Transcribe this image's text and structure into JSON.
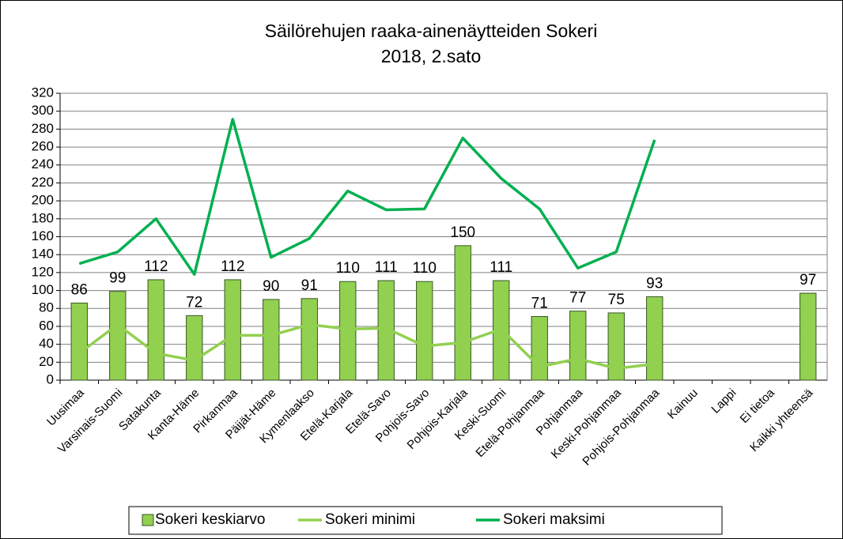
{
  "chart_data": {
    "type": "bar",
    "title": "Säilörehujen raaka-ainenäytteiden Sokeri",
    "subtitle": "2018, 2.sato",
    "categories": [
      "Uusimaa",
      "Varsinais-Suomi",
      "Satakunta",
      "Kanta-Häme",
      "Pirkanmaa",
      "Päijät-Häme",
      "Kymenlaakso",
      "Etelä-Karjala",
      "Etelä-Savo",
      "Pohjois-Savo",
      "Pohjois-Karjala",
      "Keski-Suomi",
      "Etelä-Pohjanmaa",
      "Pohjanmaa",
      "Keski-Pohjanmaa",
      "Pohjois-Pohjanmaa",
      "Kainuu",
      "Lappi",
      "Ei tietoa",
      "Kaikki yhteensä"
    ],
    "series": [
      {
        "name": "Sokeri keskiarvo",
        "type": "bar",
        "color": "#92d050",
        "data_labels": true,
        "values": [
          86,
          99,
          112,
          72,
          112,
          90,
          91,
          110,
          111,
          110,
          150,
          111,
          71,
          77,
          75,
          93,
          null,
          null,
          null,
          97
        ]
      },
      {
        "name": "Sokeri minimi",
        "type": "line",
        "color": "#92d050",
        "values": [
          30,
          62,
          30,
          22,
          50,
          50,
          62,
          57,
          58,
          38,
          42,
          57,
          15,
          24,
          13,
          18,
          null,
          null,
          null,
          null
        ]
      },
      {
        "name": "Sokeri maksimi",
        "type": "line",
        "color": "#00b050",
        "values": [
          130,
          143,
          180,
          118,
          291,
          137,
          158,
          211,
          190,
          191,
          270,
          225,
          191,
          125,
          143,
          268,
          null,
          null,
          null,
          null
        ]
      }
    ],
    "ylim": [
      0,
      320
    ],
    "yticks": [
      0,
      20,
      40,
      60,
      80,
      100,
      120,
      140,
      160,
      180,
      200,
      220,
      240,
      260,
      280,
      300,
      320
    ],
    "grid": true,
    "legend": "bottom"
  }
}
